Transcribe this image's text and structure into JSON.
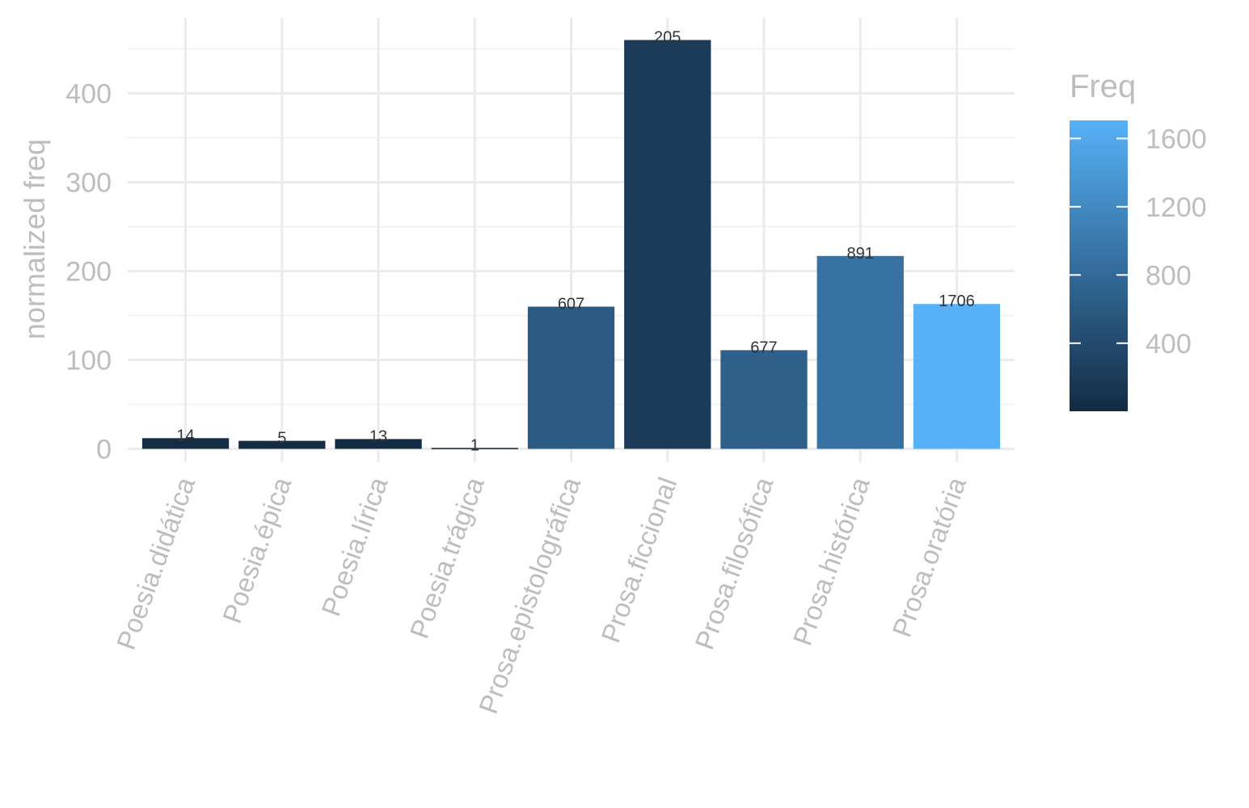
{
  "chart_data": {
    "type": "bar",
    "xlabel": "",
    "ylabel": "normalized freq",
    "ylim": [
      -15,
      485
    ],
    "yticks": [
      0,
      100,
      200,
      300,
      400
    ],
    "categories": [
      "Poesia.didática",
      "Poesia.épica",
      "Poesia.lírica",
      "Poesia.trágica",
      "Prosa.epistolográfica",
      "Prosa.ficcional",
      "Prosa.filosófica",
      "Prosa.histórica",
      "Prosa.oratória"
    ],
    "values": [
      12,
      9,
      11,
      1,
      160,
      460,
      111,
      217,
      163
    ],
    "fill_values": [
      14,
      5,
      13,
      1,
      607,
      205,
      677,
      891,
      1706
    ],
    "labels": [
      "14",
      "5",
      "13",
      "1",
      "607",
      "205",
      "677",
      "891",
      "1706"
    ],
    "grid": true,
    "legend": {
      "title": "Freq",
      "position": "right",
      "type": "colorbar",
      "range": [
        1,
        1706
      ],
      "ticks": [
        400,
        800,
        1200,
        1600
      ],
      "tick_labels": [
        "400",
        "800",
        "1200",
        "1600"
      ],
      "low_color": "#132B43",
      "high_color": "#56B1F7"
    }
  }
}
